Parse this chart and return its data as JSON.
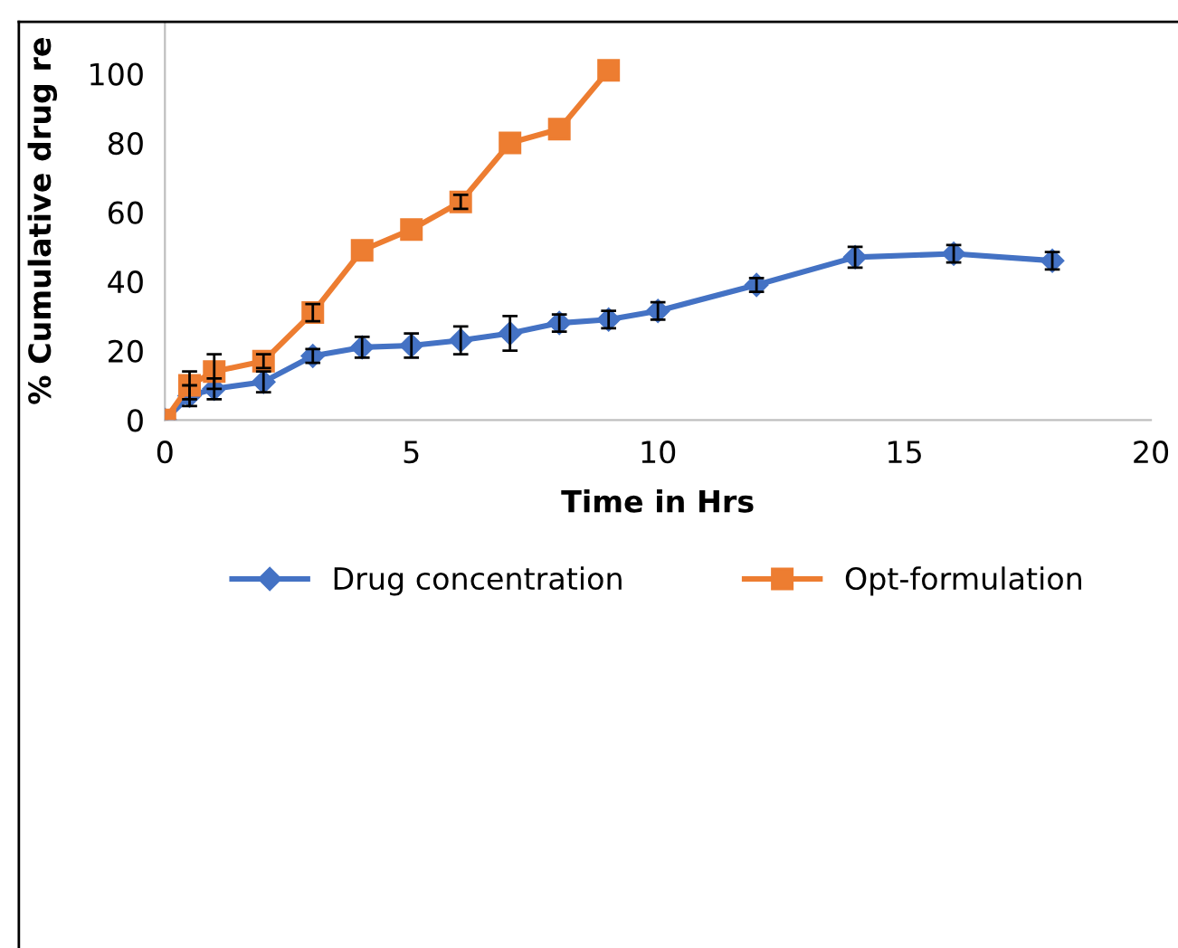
{
  "chart_data": {
    "type": "line",
    "xlabel": "Time in Hrs",
    "ylabel": "% Cumulative drug re",
    "xlim": [
      0,
      20
    ],
    "xticks": [
      0,
      5,
      10,
      15,
      20
    ],
    "ylim": [
      0,
      115
    ],
    "yticks": [
      0,
      20,
      40,
      60,
      80,
      100
    ],
    "grid": false,
    "legend": "bottom",
    "line_style": "solid",
    "series": [
      {
        "name": "Drug concentration",
        "color": "#4472c4",
        "marker": "diamond",
        "x": [
          0,
          0.5,
          1,
          2,
          3,
          4,
          5,
          6,
          7,
          8,
          9,
          10,
          12,
          14,
          16,
          18
        ],
        "values": [
          0,
          7,
          9,
          11,
          18.5,
          21,
          21.5,
          23,
          25,
          28,
          29,
          31.5,
          39,
          47,
          48,
          46
        ],
        "errors": [
          null,
          3,
          3,
          3,
          2,
          3,
          3.5,
          4,
          5,
          2.5,
          2.5,
          2.5,
          2,
          3,
          2.5,
          2.5
        ]
      },
      {
        "name": "Opt-formulation",
        "color": "#ed7d31",
        "marker": "square",
        "x": [
          0,
          0.5,
          1,
          2,
          3,
          4,
          5,
          6,
          7,
          8,
          9
        ],
        "values": [
          0,
          10,
          14,
          17,
          31,
          49,
          55,
          63,
          80,
          84,
          101
        ],
        "errors": [
          null,
          4,
          5,
          2,
          2.5,
          null,
          null,
          2,
          null,
          null,
          null
        ]
      }
    ]
  }
}
